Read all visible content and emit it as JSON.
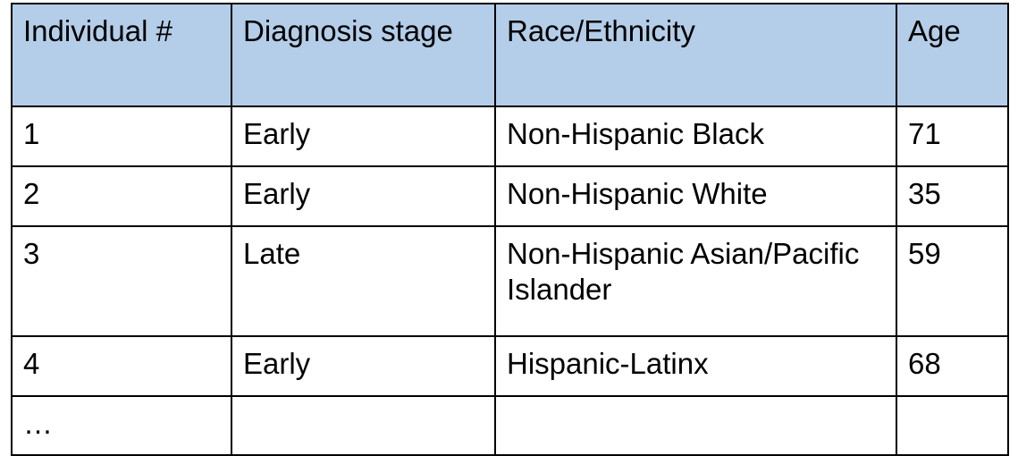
{
  "table": {
    "header": [
      "Individual #",
      "Diagnosis stage",
      "Race/Ethnicity",
      "Age"
    ],
    "rows": [
      [
        "1",
        "Early",
        "Non-Hispanic Black",
        "71"
      ],
      [
        "2",
        "Early",
        "Non-Hispanic White",
        "35"
      ],
      [
        "3",
        "Late",
        "Non-Hispanic Asian/Pacific Islander",
        "59"
      ],
      [
        "4",
        "Early",
        "Hispanic-Latinx",
        "68"
      ],
      [
        "…"
      ]
    ]
  }
}
